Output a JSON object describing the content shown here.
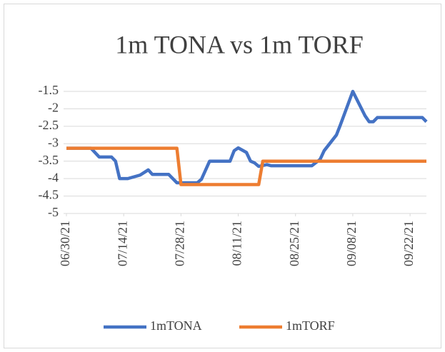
{
  "chart_data": {
    "type": "line",
    "title": "1m TONA vs 1m TORF",
    "xlim": [
      "06/30/21",
      "09/26/21"
    ],
    "xticks": [
      "06/30/21",
      "07/14/21",
      "07/28/21",
      "08/11/21",
      "08/25/21",
      "09/08/21",
      "09/22/21"
    ],
    "ylim": [
      -5,
      -1.5
    ],
    "yticks": [
      -1.5,
      -2,
      -2.5,
      -3,
      -3.5,
      -4,
      -4.5,
      -5
    ],
    "grid": true,
    "legend": "bottom",
    "series": [
      {
        "name": "1mTONA",
        "color": "#4472c4",
        "x": [
          "06/30/21",
          "07/06/21",
          "07/08/21",
          "07/11/21",
          "07/12/21",
          "07/13/21",
          "07/15/21",
          "07/18/21",
          "07/20/21",
          "07/21/21",
          "07/25/21",
          "07/27/21",
          "08/01/21",
          "08/02/21",
          "08/04/21",
          "08/09/21",
          "08/10/21",
          "08/11/21",
          "08/13/21",
          "08/14/21",
          "08/15/21",
          "08/16/21",
          "08/18/21",
          "08/19/21",
          "08/29/21",
          "08/31/21",
          "09/01/21",
          "09/04/21",
          "09/05/21",
          "09/08/21",
          "09/11/21",
          "09/12/21",
          "09/13/21",
          "09/14/21",
          "09/25/21",
          "09/26/21"
        ],
        "values": [
          -3.13,
          -3.13,
          -3.38,
          -3.38,
          -3.5,
          -4.0,
          -4.0,
          -3.9,
          -3.75,
          -3.88,
          -3.88,
          -4.12,
          -4.12,
          -4.02,
          -3.5,
          -3.5,
          -3.2,
          -3.12,
          -3.25,
          -3.5,
          -3.55,
          -3.65,
          -3.6,
          -3.63,
          -3.63,
          -3.45,
          -3.2,
          -2.75,
          -2.45,
          -1.5,
          -2.2,
          -2.37,
          -2.37,
          -2.25,
          -2.25,
          -2.37
        ]
      },
      {
        "name": "1mTORF",
        "color": "#ed7d31",
        "x": [
          "06/30/21",
          "07/27/21",
          "07/28/21",
          "08/16/21",
          "08/17/21",
          "09/26/21"
        ],
        "values": [
          -3.13,
          -3.13,
          -4.17,
          -4.17,
          -3.5,
          -3.5
        ]
      }
    ]
  }
}
